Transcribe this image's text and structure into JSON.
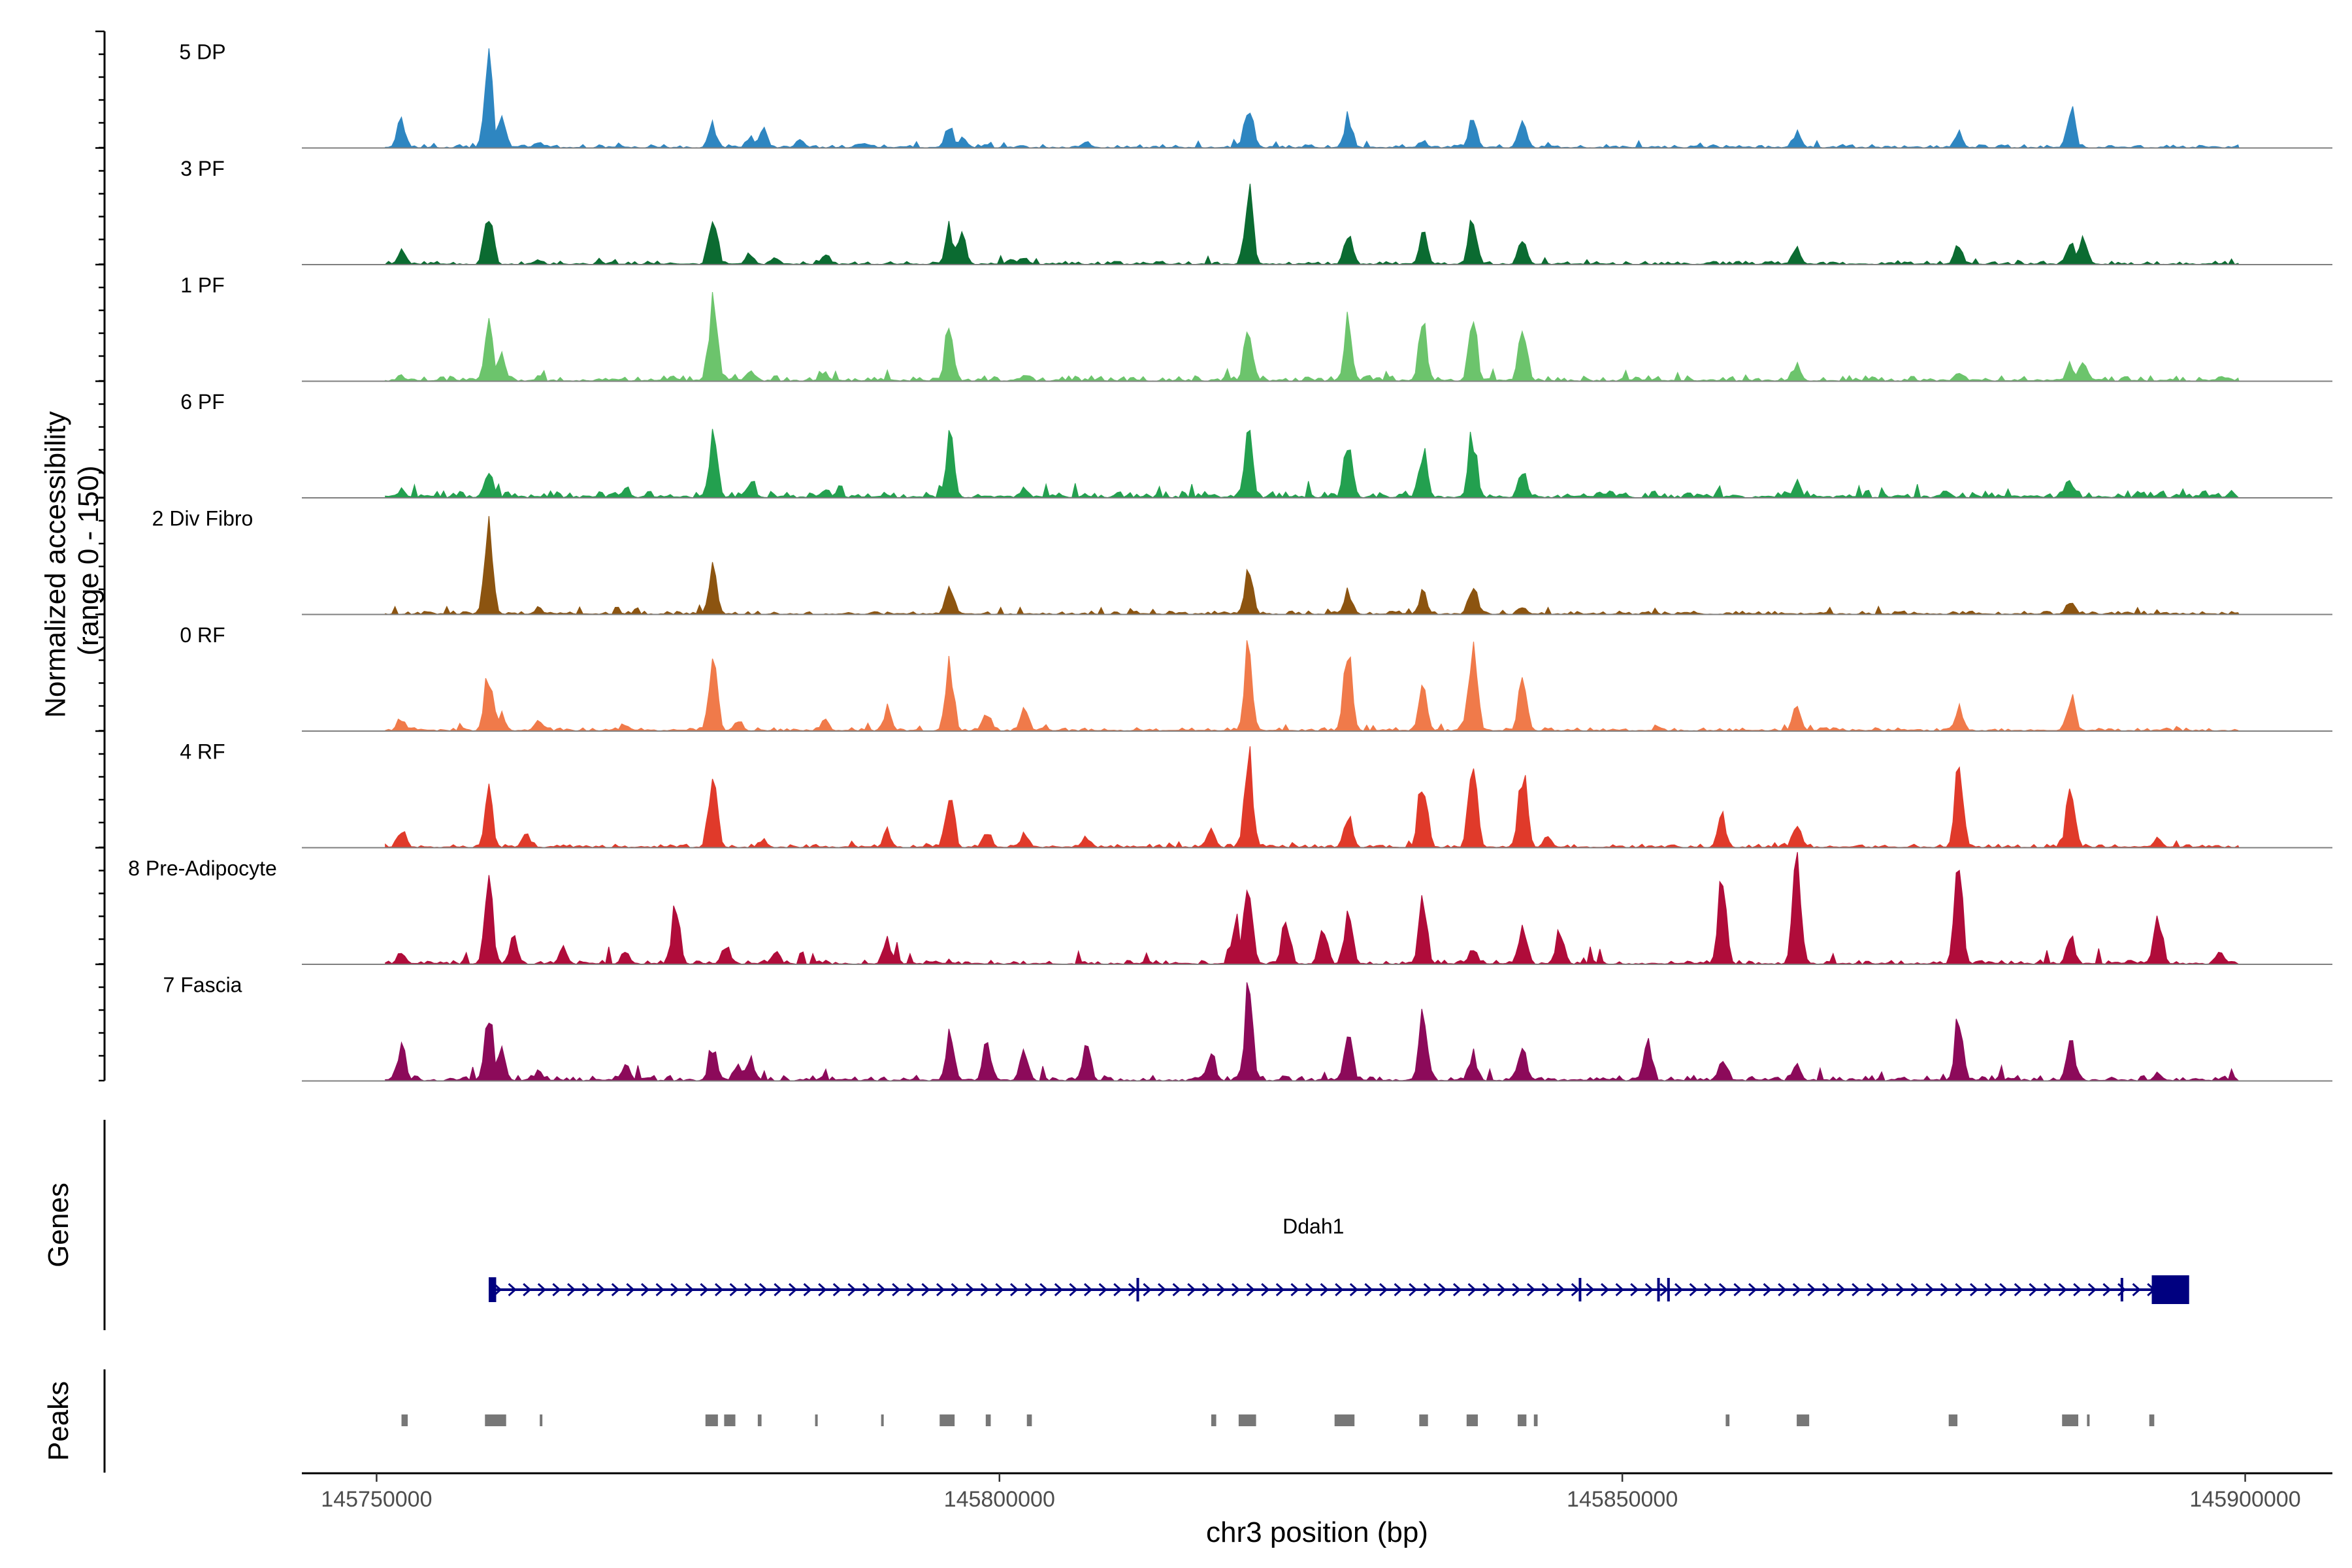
{
  "chart_data": {
    "type": "area",
    "title": "",
    "ylabel": "Normalized accessibility\n(range 0 - 150)",
    "y_range": [
      0,
      150
    ],
    "xlabel": "chr3 position (bp)",
    "x_range": [
      145744000,
      145907000
    ],
    "x_ticks": [
      145750000,
      145800000,
      145850000,
      145900000
    ],
    "x_tick_labels": [
      "145750000",
      "145800000",
      "145850000",
      "145900000"
    ],
    "genes_panel_label": "Genes",
    "peaks_panel_label": "Peaks",
    "tracks": [
      {
        "name": "5 DP",
        "color": "#2e86c1",
        "noise": 5,
        "floor": 5,
        "peaks": [
          [
            145752000,
            50
          ],
          [
            145759000,
            150
          ],
          [
            145760000,
            70
          ],
          [
            145763000,
            10
          ],
          [
            145777000,
            40
          ],
          [
            145780000,
            20
          ],
          [
            145781000,
            35
          ],
          [
            145784000,
            20
          ],
          [
            145789000,
            10
          ],
          [
            145796000,
            40
          ],
          [
            145797000,
            18
          ],
          [
            145807000,
            12
          ],
          [
            145820000,
            80
          ],
          [
            145828000,
            55
          ],
          [
            145834000,
            14
          ],
          [
            145838000,
            55
          ],
          [
            145842000,
            65
          ],
          [
            145864000,
            30
          ],
          [
            145877000,
            28
          ],
          [
            145886000,
            70
          ]
        ]
      },
      {
        "name": "3 PF",
        "color": "#0b6b31",
        "noise": 5,
        "floor": 5,
        "peaks": [
          [
            145752000,
            25
          ],
          [
            145759000,
            105
          ],
          [
            145763000,
            10
          ],
          [
            145777000,
            95
          ],
          [
            145780000,
            20
          ],
          [
            145782000,
            12
          ],
          [
            145786000,
            20
          ],
          [
            145796000,
            65
          ],
          [
            145797000,
            55
          ],
          [
            145801000,
            12
          ],
          [
            145802000,
            15
          ],
          [
            145820000,
            130
          ],
          [
            145828000,
            65
          ],
          [
            145834000,
            55
          ],
          [
            145838000,
            80
          ],
          [
            145842000,
            48
          ],
          [
            145864000,
            35
          ],
          [
            145877000,
            35
          ],
          [
            145886000,
            50
          ],
          [
            145887000,
            45
          ]
        ]
      },
      {
        "name": "1 PF",
        "color": "#6cc46c",
        "noise": 8,
        "floor": 8,
        "peaks": [
          [
            145752000,
            10
          ],
          [
            145759000,
            100
          ],
          [
            145760000,
            60
          ],
          [
            145777000,
            150
          ],
          [
            145780000,
            18
          ],
          [
            145786000,
            15
          ],
          [
            145796000,
            110
          ],
          [
            145802000,
            12
          ],
          [
            145820000,
            110
          ],
          [
            145828000,
            105
          ],
          [
            145834000,
            105
          ],
          [
            145838000,
            115
          ],
          [
            145842000,
            105
          ],
          [
            145864000,
            30
          ],
          [
            145877000,
            15
          ],
          [
            145886000,
            30
          ],
          [
            145887000,
            45
          ]
        ]
      },
      {
        "name": "6 PF",
        "color": "#23a04f",
        "noise": 10,
        "floor": 10,
        "peaks": [
          [
            145752000,
            15
          ],
          [
            145759000,
            60
          ],
          [
            145770000,
            20
          ],
          [
            145777000,
            120
          ],
          [
            145780000,
            30
          ],
          [
            145786000,
            18
          ],
          [
            145796000,
            105
          ],
          [
            145802000,
            20
          ],
          [
            145820000,
            110
          ],
          [
            145828000,
            110
          ],
          [
            145834000,
            90
          ],
          [
            145838000,
            115
          ],
          [
            145842000,
            50
          ],
          [
            145864000,
            25
          ],
          [
            145876000,
            15
          ],
          [
            145886000,
            30
          ]
        ]
      },
      {
        "name": "2 Div Fibro",
        "color": "#8c5410",
        "noise": 5,
        "floor": 5,
        "peaks": [
          [
            145759000,
            150
          ],
          [
            145763000,
            12
          ],
          [
            145777000,
            80
          ],
          [
            145796000,
            50
          ],
          [
            145820000,
            75
          ],
          [
            145828000,
            40
          ],
          [
            145834000,
            40
          ],
          [
            145838000,
            60
          ],
          [
            145842000,
            15
          ],
          [
            145886000,
            25
          ]
        ]
      },
      {
        "name": "0 RF",
        "color": "#f07a4a",
        "noise": 5,
        "floor": 5,
        "peaks": [
          [
            145752000,
            25
          ],
          [
            145759000,
            110
          ],
          [
            145760000,
            30
          ],
          [
            145763000,
            20
          ],
          [
            145770000,
            12
          ],
          [
            145777000,
            140
          ],
          [
            145779000,
            20
          ],
          [
            145786000,
            20
          ],
          [
            145791000,
            40
          ],
          [
            145796000,
            115
          ],
          [
            145799000,
            35
          ],
          [
            145802000,
            45
          ],
          [
            145820000,
            145
          ],
          [
            145828000,
            145
          ],
          [
            145834000,
            100
          ],
          [
            145838000,
            170
          ],
          [
            145842000,
            90
          ],
          [
            145864000,
            40
          ],
          [
            145877000,
            45
          ],
          [
            145886000,
            70
          ]
        ]
      },
      {
        "name": "4 RF",
        "color": "#e03a2a",
        "noise": 5,
        "floor": 5,
        "peaks": [
          [
            145752000,
            35
          ],
          [
            145759000,
            95
          ],
          [
            145762000,
            25
          ],
          [
            145777000,
            165
          ],
          [
            145781000,
            15
          ],
          [
            145791000,
            30
          ],
          [
            145796000,
            110
          ],
          [
            145799000,
            30
          ],
          [
            145802000,
            25
          ],
          [
            145807000,
            20
          ],
          [
            145817000,
            30
          ],
          [
            145820000,
            170
          ],
          [
            145828000,
            60
          ],
          [
            145834000,
            140
          ],
          [
            145838000,
            170
          ],
          [
            145842000,
            150
          ],
          [
            145844000,
            20
          ],
          [
            145858000,
            55
          ],
          [
            145864000,
            40
          ],
          [
            145877000,
            150
          ],
          [
            145886000,
            120
          ],
          [
            145893000,
            20
          ]
        ]
      },
      {
        "name": "8 Pre-Adipocyte",
        "color": "#b00c3a",
        "noise": 14,
        "floor": 6,
        "peaks": [
          [
            145752000,
            25
          ],
          [
            145759000,
            150
          ],
          [
            145761000,
            45
          ],
          [
            145765000,
            30
          ],
          [
            145770000,
            25
          ],
          [
            145774000,
            110
          ],
          [
            145778000,
            35
          ],
          [
            145782000,
            28
          ],
          [
            145791000,
            45
          ],
          [
            145819000,
            80
          ],
          [
            145820000,
            150
          ],
          [
            145823000,
            90
          ],
          [
            145826000,
            70
          ],
          [
            145828000,
            95
          ],
          [
            145834000,
            110
          ],
          [
            145838000,
            30
          ],
          [
            145842000,
            80
          ],
          [
            145845000,
            60
          ],
          [
            145858000,
            170
          ],
          [
            145864000,
            190
          ],
          [
            145877000,
            165
          ],
          [
            145886000,
            55
          ],
          [
            145893000,
            95
          ],
          [
            145898000,
            25
          ]
        ]
      },
      {
        "name": "7 Fascia",
        "color": "#8c0a5a",
        "noise": 8,
        "floor": 8,
        "peaks": [
          [
            145752000,
            65
          ],
          [
            145759000,
            120
          ],
          [
            145760000,
            60
          ],
          [
            145763000,
            20
          ],
          [
            145770000,
            30
          ],
          [
            145777000,
            70
          ],
          [
            145779000,
            35
          ],
          [
            145780000,
            45
          ],
          [
            145796000,
            80
          ],
          [
            145799000,
            70
          ],
          [
            145802000,
            55
          ],
          [
            145807000,
            60
          ],
          [
            145817000,
            50
          ],
          [
            145820000,
            160
          ],
          [
            145828000,
            85
          ],
          [
            145834000,
            130
          ],
          [
            145838000,
            50
          ],
          [
            145842000,
            65
          ],
          [
            145852000,
            65
          ],
          [
            145858000,
            40
          ],
          [
            145864000,
            30
          ],
          [
            145877000,
            110
          ],
          [
            145886000,
            80
          ],
          [
            145893000,
            15
          ]
        ]
      }
    ],
    "gene": {
      "name": "Ddah1",
      "start": 145759000,
      "end": 145893500,
      "strand": "+",
      "color": "#000080",
      "exons": [
        [
          145759000,
          145759600
        ],
        [
          145811000,
          145811150
        ],
        [
          145846500,
          145846650
        ],
        [
          145852800,
          145852950
        ],
        [
          145853600,
          145853750
        ],
        [
          145890000,
          145890150
        ],
        [
          145892500,
          145895500
        ]
      ]
    },
    "peaks_track": {
      "color": "#777777",
      "regions": [
        [
          145752000,
          145752500
        ],
        [
          145758700,
          145760400
        ],
        [
          145763100,
          145763300
        ],
        [
          145776400,
          145777400
        ],
        [
          145777900,
          145778800
        ],
        [
          145780600,
          145780900
        ],
        [
          145785200,
          145785400
        ],
        [
          145790500,
          145790700
        ],
        [
          145795200,
          145796400
        ],
        [
          145798900,
          145799300
        ],
        [
          145802200,
          145802600
        ],
        [
          145817000,
          145817400
        ],
        [
          145819200,
          145820600
        ],
        [
          145826900,
          145828500
        ],
        [
          145833700,
          145834400
        ],
        [
          145837500,
          145838400
        ],
        [
          145841600,
          145842300
        ],
        [
          145842900,
          145843200
        ],
        [
          145858300,
          145858600
        ],
        [
          145864000,
          145865000
        ],
        [
          145876200,
          145876900
        ],
        [
          145885300,
          145886600
        ],
        [
          145887300,
          145887500
        ],
        [
          145892300,
          145892700
        ]
      ]
    }
  }
}
